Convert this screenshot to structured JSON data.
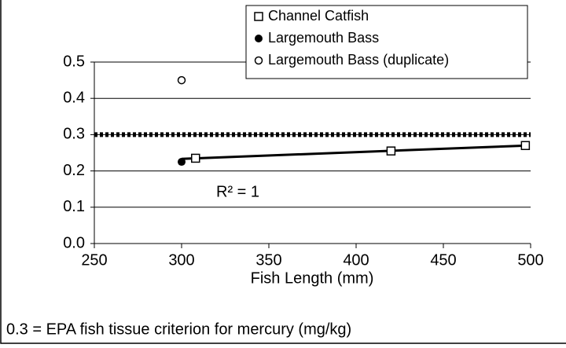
{
  "chart_data": {
    "type": "scatter",
    "x_label": "Fish Length (mm)",
    "series": [
      {
        "name": "Channel Catfish",
        "marker": "open-square",
        "color": "#000000",
        "x": [
          308,
          420,
          497
        ],
        "values": [
          0.235,
          0.255,
          0.27
        ]
      },
      {
        "name": "Largemouth Bass",
        "marker": "filled-circle",
        "color": "#000000",
        "x": [
          300
        ],
        "values": [
          0.225
        ]
      },
      {
        "name": "Largemouth Bass (duplicate)",
        "marker": "open-circle",
        "color": "#000000",
        "x": [
          300
        ],
        "values": [
          0.45
        ]
      }
    ],
    "trendline": true,
    "annotation": "R² = 1",
    "reference_line": {
      "value": 0.3
    },
    "footnote": "0.3 = EPA fish tissue criterion for mercury (mg/kg)",
    "xlim": [
      250,
      500
    ],
    "xticks": [
      250,
      300,
      350,
      400,
      450,
      500
    ],
    "ylim": [
      0,
      0.5
    ],
    "yticks": [
      {
        "value": 0,
        "label": "0.0"
      },
      0.1,
      0.2,
      0.3,
      0.4,
      0.5
    ],
    "grid": true,
    "legend": "top-right"
  }
}
